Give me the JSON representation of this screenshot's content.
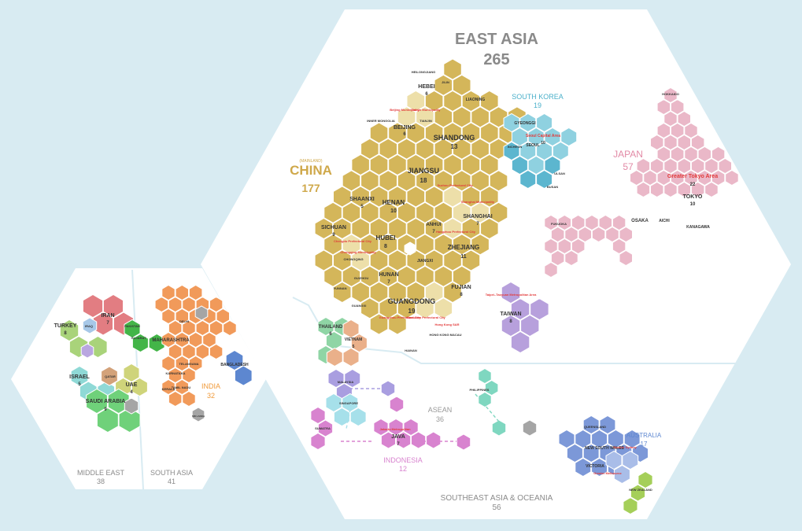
{
  "colors": {
    "background": "#d8ebf2",
    "panel": "#ffffff",
    "china": "#d4b65a",
    "china_light": "#eddfa9",
    "china_label": "#cfa84a",
    "japan": "#eab8c8",
    "japan_label": "#e28aa6",
    "korea": "#8fd1e0",
    "korea_dark": "#5cb6cf",
    "korea_label": "#4bb0ca",
    "taiwan": "#b7a0dc",
    "india": "#f19a5a",
    "india_label": "#f09a3a",
    "iran": "#e27d82",
    "turkey": "#a9d37a",
    "israel": "#8fd9d6",
    "uae": "#cfd47a",
    "qatar": "#d3a27a",
    "saudi": "#6fd17a",
    "pakistan": "#43b548",
    "bangladesh": "#5d87d0",
    "thailand": "#8fd5a5",
    "vietnam": "#eab08a",
    "malaysia": "#a99ee0",
    "singapore": "#a6e0ea",
    "indonesia": "#d883cf",
    "philippines": "#7fd7c0",
    "australia": "#7c98d8",
    "australia_light": "#a9bde8",
    "newzealand": "#a5cf59",
    "grey": "#a5a5a5",
    "red_text": "#e23a3a",
    "region_label": "#8a8a8a"
  },
  "regions": {
    "east_asia": {
      "name": "EAST ASIA",
      "count": "265"
    },
    "middle_east": {
      "name": "MIDDLE EAST",
      "count": "38"
    },
    "south_asia": {
      "name": "SOUTH ASIA",
      "count": "41"
    },
    "sea_oceania": {
      "name": "SOUTHEAST ASIA & OCEANIA",
      "count": "56"
    }
  },
  "countries": {
    "china": {
      "prefix": "(MAINLAND)",
      "name": "CHINA",
      "count": "177"
    },
    "south_korea": {
      "name": "SOUTH KOREA",
      "count": "19"
    },
    "japan": {
      "name": "JAPAN",
      "count": "57"
    },
    "india": {
      "name": "INDIA",
      "count": "32"
    },
    "asean": {
      "name": "ASEAN",
      "count": "36"
    },
    "indonesia": {
      "name": "INDONESIA",
      "count": "12"
    },
    "australia": {
      "name": "AUSTRALIA",
      "count": "17"
    }
  },
  "labels": {
    "hebei": "HEBEI",
    "hebei_n": "6",
    "liaoning": "LIAONING",
    "heilongjiang": "HEILONGJIANG",
    "jilin": "JILIN",
    "beijing_muni": "Beijing Municipality",
    "tianjin_muni": "Tianjin Municipality",
    "tianjin": "TIANJIN",
    "beijing": "BEIJING",
    "beijing_n": "6",
    "inner_mongolia": "INNER MONGOLIA",
    "shandong": "SHANDONG",
    "shandong_n": "13",
    "jiangsu": "JIANGSU",
    "jiangsu_n": "18",
    "henan": "HENAN",
    "henan_n": "10",
    "shaanxi": "SHAANXI",
    "shaanxi_n": "5",
    "hubei": "HUBEI",
    "hubei_n": "8",
    "anhui": "ANHUI",
    "anhui_n": "7",
    "sichuan": "SICHUAN",
    "sichuan_n": "9",
    "chengdu_pref": "Chengdu Prefectural City",
    "chongqing_muni": "Chongqing Municipality",
    "chongqing": "CHONGQING",
    "suzhou_pref": "Suzhou Prefectural City",
    "shanghai_muni": "Shanghai Municipality",
    "shanghai": "SHANGHAI",
    "shanghai_n": "7",
    "hangzhou_pref": "Hangzhou Prefectural City",
    "zhejiang": "ZHEJIANG",
    "zhejiang_n": "11",
    "jiangxi": "JIANGXI",
    "hunan": "HUNAN",
    "hunan_n": "7",
    "guizhou": "GUIZHOU",
    "yunnan": "YUNNAN",
    "guangxi": "GUANGXI",
    "fujian": "FUJIAN",
    "fujian_n": "8",
    "guangdong": "GUANGDONG",
    "guangdong_n": "19",
    "guangzhou_pref": "Guangzhou Prefectural City",
    "shenzhen_pref": "Shenzhen Prefectural City",
    "hongkong_sar": "Hong Kong SAR",
    "hongkong_macau": "HONG KONG MACAU",
    "hainan": "HAINAN",
    "gyeonggi": "GYEONGGI",
    "seoul_capital": "Seoul Capital Area",
    "seoul_capital_n": "10",
    "seoul": "SEOUL",
    "incheon": "INCHEON",
    "busan": "BUSAN",
    "ulsan": "ULSAN",
    "hokkaido": "HOKKAIDO",
    "greater_tokyo": "Greater Tokyo Area",
    "greater_tokyo_n": "22",
    "tokyo": "TOKYO",
    "tokyo_n": "10",
    "kanagawa": "KANAGAWA",
    "osaka": "OSAKA",
    "aichi": "AICHI",
    "fukuoka": "FUKUOKA",
    "taipei": "Taipei–Taoyuan Metropolitan Area",
    "taiwan": "TAIWAN",
    "taiwan_n": "8",
    "thailand": "THAILAND",
    "thailand_n": "6",
    "vietnam": "VIETNAM",
    "vietnam_n": "5",
    "malaysia": "MALAYSIA",
    "singapore": "SINGAPORE",
    "philippines": "PHILIPPINES",
    "java": "JAVA",
    "java_n": "7",
    "jakarta": "Jakarta Metropolitan",
    "sumatra": "SUMATRA",
    "queensland": "QUEENSLAND",
    "nsw": "NEW SOUTH WALES",
    "greater_sydney": "Greater Sydney",
    "victoria": "VICTORIA",
    "greater_melbourne": "Greater Melbourne",
    "new_zealand": "NEW ZEALAND",
    "iran": "IRAN",
    "iran_n": "7",
    "turkey": "TURKEY",
    "turkey_n": "8",
    "iraq": "IRAQ",
    "israel": "ISRAEL",
    "israel_n": "5",
    "qatar": "QATAR",
    "uae": "UAE",
    "uae_n": "4",
    "saudi": "SAUDI ARABIA",
    "saudi_n": "9",
    "pakistan": "PAKISTAN",
    "maharashtra": "MAHARASHTRA",
    "delhi": "DELHI",
    "gujarat": "GUJARAT",
    "karnataka": "KARNATAKA",
    "tamil_nadu": "TAMIL NADU",
    "kerala": "KERALA",
    "telangana": "TELANGANA",
    "bangladesh": "BANGLADESH",
    "sri_lanka": "SRI LANKA"
  }
}
